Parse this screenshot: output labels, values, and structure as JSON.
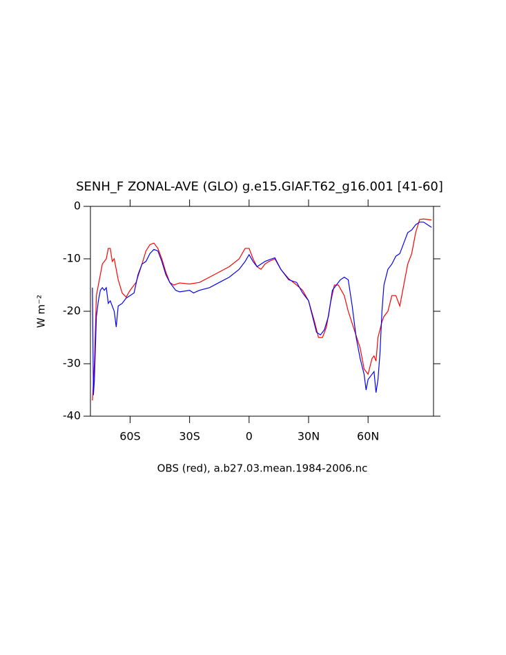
{
  "chart_data": {
    "type": "line",
    "title": "SENH_F ZONAL-AVE (GLO) g.e15.GIAF.T62_g16.001 [41-60]",
    "xlabel": "OBS (red), a.b27.03.mean.1984-2006.nc",
    "ylabel": "W m⁻²",
    "xlim": [
      -80,
      93
    ],
    "ylim": [
      -40,
      0
    ],
    "xticks": [
      {
        "value": -60,
        "label": "60S"
      },
      {
        "value": -30,
        "label": "30S"
      },
      0,
      {
        "value": 30,
        "label": "30N"
      },
      {
        "value": 60,
        "label": "60N"
      }
    ],
    "yticks": [
      -40,
      -30,
      -20,
      -10,
      0
    ],
    "series": [
      {
        "color": "#ff0000",
        "x": [
          -79,
          -78,
          -77,
          -76,
          -74,
          -72,
          -71,
          -70,
          -69,
          -68,
          -66,
          -64,
          -62,
          -60,
          -57,
          -54,
          -52,
          -50,
          -48,
          -46,
          -44,
          -42,
          -40,
          -38,
          -35,
          -30,
          -25,
          -20,
          -15,
          -10,
          -5,
          -2,
          0,
          2,
          4,
          6,
          8,
          10,
          13,
          16,
          20,
          24,
          27,
          30,
          33,
          35,
          37,
          39,
          41,
          43,
          45,
          48,
          50,
          53,
          56,
          58,
          60,
          62,
          63,
          64,
          65,
          67,
          68,
          70,
          72,
          74,
          76,
          78,
          80,
          82,
          84,
          86,
          88,
          90,
          92
        ],
        "values": [
          -37,
          -30,
          -17,
          -15,
          -11,
          -10,
          -8,
          -8,
          -10.5,
          -10,
          -14,
          -16.5,
          -17.3,
          -16,
          -14.5,
          -11,
          -8.5,
          -7.3,
          -7,
          -8,
          -10,
          -12.5,
          -14.5,
          -15,
          -14.6,
          -14.8,
          -14.5,
          -13.5,
          -12.5,
          -11.5,
          -10,
          -8,
          -8,
          -10,
          -11.5,
          -12,
          -11,
          -10.5,
          -10,
          -12,
          -13.8,
          -15,
          -16,
          -18,
          -22,
          -25,
          -25,
          -23,
          -18.5,
          -15,
          -15,
          -17,
          -20,
          -23.5,
          -27,
          -31,
          -32,
          -29,
          -28.5,
          -29.5,
          -25,
          -22,
          -21,
          -20,
          -17,
          -17,
          -19,
          -15,
          -11,
          -9,
          -5,
          -2.5,
          -2.4,
          -2.5,
          -2.6
        ]
      },
      {
        "color": "#0000ff",
        "x": [
          -79,
          -78.5,
          -78,
          -77,
          -76,
          -75,
          -74,
          -73,
          -72,
          -71,
          -70,
          -68,
          -67,
          -66,
          -64,
          -62,
          -60,
          -58,
          -56,
          -54,
          -52,
          -50,
          -48,
          -46,
          -44,
          -42,
          -40,
          -37,
          -35,
          -30,
          -28,
          -25,
          -20,
          -15,
          -10,
          -5,
          -2,
          0,
          2,
          4,
          6,
          8,
          10,
          13,
          16,
          20,
          24,
          27,
          30,
          32,
          34,
          36,
          38,
          40,
          42,
          44,
          46,
          48,
          50,
          52,
          54,
          56,
          58,
          59,
          60,
          62,
          63,
          64,
          65,
          66,
          67,
          68,
          70,
          72,
          74,
          76,
          78,
          80,
          82,
          84,
          86,
          88,
          90,
          92
        ],
        "values": [
          -15.5,
          -36,
          -33,
          -21,
          -18,
          -16,
          -15.5,
          -16,
          -15.5,
          -18.5,
          -18,
          -20,
          -23,
          -19,
          -18.5,
          -17.5,
          -17,
          -16.5,
          -13,
          -11,
          -10.5,
          -9,
          -8.2,
          -8.5,
          -10.5,
          -13,
          -14.5,
          -16,
          -16.3,
          -16,
          -16.5,
          -16,
          -15.5,
          -14.5,
          -13.5,
          -12,
          -10.5,
          -9.2,
          -10.5,
          -11.5,
          -11,
          -10.5,
          -10.2,
          -9.8,
          -12,
          -14,
          -14.5,
          -16.5,
          -18,
          -21,
          -24,
          -24.5,
          -23.5,
          -21,
          -16,
          -15,
          -14,
          -13.5,
          -14,
          -19,
          -25,
          -29,
          -32,
          -35,
          -33,
          -32,
          -31.5,
          -35.5,
          -33,
          -28,
          -20,
          -15,
          -12,
          -11,
          -9.5,
          -9,
          -7,
          -5,
          -4.5,
          -3.5,
          -3,
          -3,
          -3.5,
          -4
        ]
      }
    ]
  }
}
